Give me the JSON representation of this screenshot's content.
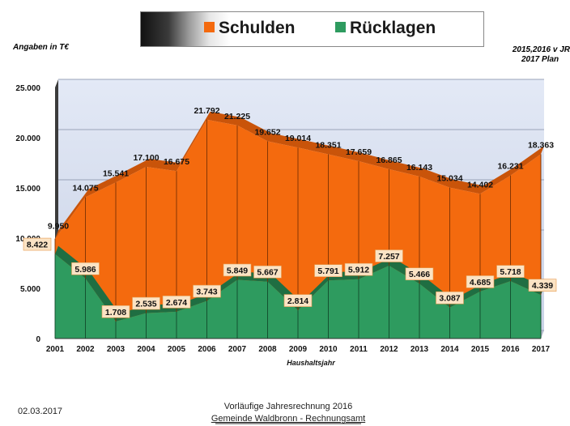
{
  "legend": {
    "schulden": "Schulden",
    "ruecklagen": "Rücklagen",
    "schulden_color": "#f46a0e",
    "ruecklagen_color": "#2e9b5f"
  },
  "unit_label": "Angaben in T€",
  "note_line1": "2015,2016 v JR",
  "note_line2": "2017 Plan",
  "footer": {
    "date": "02.03.2017",
    "line1": "Vorläufige Jahresrechnung 2016",
    "line2": "Gemeinde Waldbronn - Rechnungsamt"
  },
  "chart_data": {
    "type": "area",
    "title": "",
    "xlabel": "Haushaltsjahr",
    "ylabel": "",
    "ylim": [
      0,
      25000
    ],
    "y_ticks": [
      "0",
      "5.000",
      "10.000",
      "15.000",
      "20.000",
      "25.000"
    ],
    "y_tick_values": [
      0,
      5000,
      10000,
      15000,
      20000,
      25000
    ],
    "categories": [
      "2001",
      "2002",
      "2003",
      "2004",
      "2005",
      "2006",
      "2007",
      "2008",
      "2009",
      "2010",
      "2011",
      "2012",
      "2013",
      "2014",
      "2015",
      "2016",
      "2017"
    ],
    "series": [
      {
        "name": "Schulden",
        "color": "#f46a0e",
        "values": [
          9950,
          14075,
          15541,
          17100,
          16675,
          21792,
          21225,
          19652,
          19014,
          18351,
          17659,
          16865,
          16143,
          15034,
          14402,
          16231,
          18363
        ],
        "labels": [
          "9.950",
          "14.075",
          "15.541",
          "17.100",
          "16.675",
          "21.792",
          "21.225",
          "19.652",
          "19.014",
          "18.351",
          "17.659",
          "16.865",
          "16.143",
          "15.034",
          "14.402",
          "16.231",
          "18.363"
        ]
      },
      {
        "name": "Rücklagen",
        "color": "#2e9b5f",
        "values": [
          8422,
          5986,
          1708,
          2535,
          2674,
          3743,
          5849,
          5667,
          2814,
          5791,
          5912,
          7257,
          5466,
          3087,
          4685,
          5718,
          4339
        ],
        "labels": [
          "8.422",
          "5.986",
          "1.708",
          "2.535",
          "2.674",
          "3.743",
          "5.849",
          "5.667",
          "2.814",
          "5.791",
          "5.912",
          "7.257",
          "5.466",
          "3.087",
          "4.685",
          "5.718",
          "4.339"
        ]
      }
    ],
    "grid": true,
    "legend_position": "top"
  }
}
